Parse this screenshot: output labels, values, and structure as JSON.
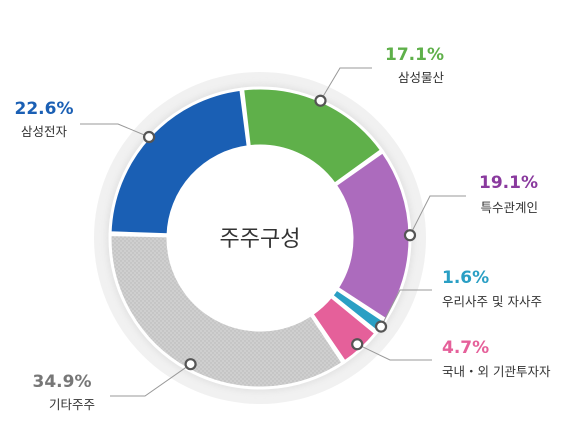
{
  "chart_data": {
    "type": "pie",
    "title": "주주구성",
    "slices": [
      {
        "label": "삼성물산",
        "value": 17.1,
        "value_label": "17.1%",
        "color": "#5fb04a",
        "label_color": "#5fb04a"
      },
      {
        "label": "특수관계인",
        "value": 19.1,
        "value_label": "19.1%",
        "color": "#ac6bbd",
        "label_color": "#8a3a9e"
      },
      {
        "label": "우리사주 및 자사주",
        "value": 1.6,
        "value_label": "1.6%",
        "color": "#2a9fc4",
        "label_color": "#2a9fc4"
      },
      {
        "label": "국내・외 기관투자자",
        "value": 4.7,
        "value_label": "4.7%",
        "color": "#e5609a",
        "label_color": "#e5609a"
      },
      {
        "label": "기타주주",
        "value": 34.9,
        "value_label": "34.9%",
        "color": "#c8c8c8",
        "label_color": "#777777"
      },
      {
        "label": "삼성전자",
        "value": 22.6,
        "value_label": "22.6%",
        "color": "#1a5fb4",
        "label_color": "#1a5fb4"
      }
    ]
  }
}
